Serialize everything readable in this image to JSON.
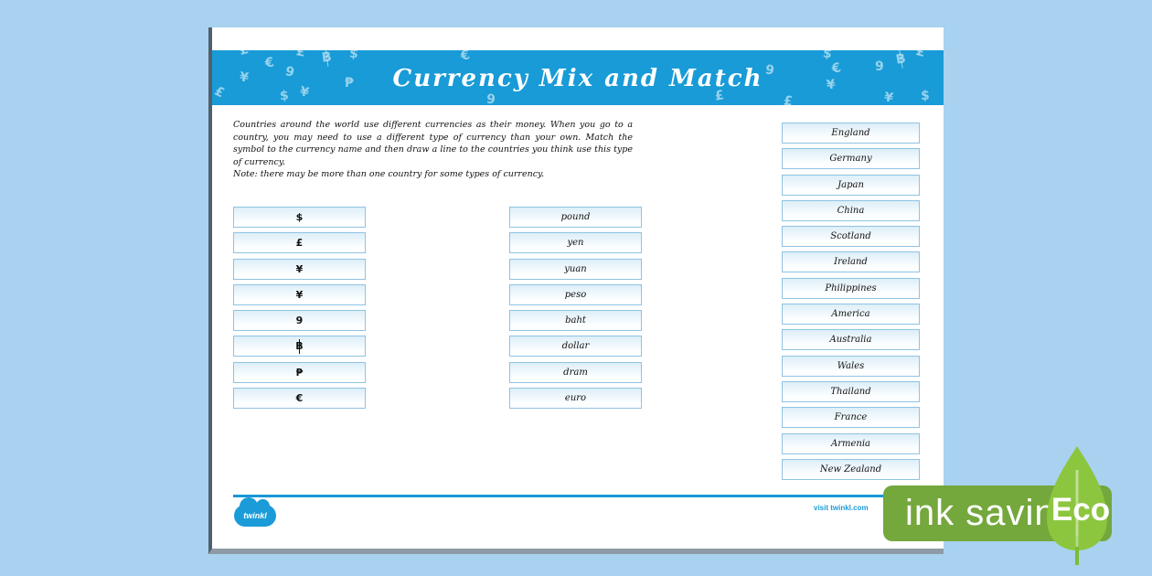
{
  "page": {
    "header": {
      "title": "Currency Mix and Match",
      "scatter_symbols": [
        "£",
        "€",
        "¥",
        "$",
        "฿",
        "₱",
        "֏"
      ]
    },
    "instructions": {
      "body": "Countries around the world use different currencies as their money. When you go to a country, you may need to use a different type of currency than your own. Match the symbol to the currency name and then draw a line to the countries you think use this type of currency.",
      "note": "Note: there may be more than one country for some types of currency."
    },
    "match": {
      "symbols": [
        "$",
        "£",
        "¥",
        "¥",
        "֏",
        "฿",
        "₱",
        "€"
      ],
      "currency_names": [
        "pound",
        "yen",
        "yuan",
        "peso",
        "baht",
        "dollar",
        "dram",
        "euro"
      ],
      "countries": [
        "England",
        "Germany",
        "Japan",
        "China",
        "Scotland",
        "Ireland",
        "Philippines",
        "America",
        "Australia",
        "Wales",
        "Thailand",
        "France",
        "Armenia",
        "New Zealand"
      ]
    },
    "footer": {
      "logo_text": "twinkl",
      "visit_text": "visit twinkl.com"
    }
  },
  "eco_badge": {
    "label": "ink saving",
    "eco": "Eco"
  },
  "colors": {
    "background": "#A8D2EF",
    "header_blue": "#189BD7",
    "box_border": "#8FC3E3",
    "accent_blue": "#1B9CD8",
    "badge_green": "#74A73C",
    "leaf_green": "#8CC63F"
  }
}
